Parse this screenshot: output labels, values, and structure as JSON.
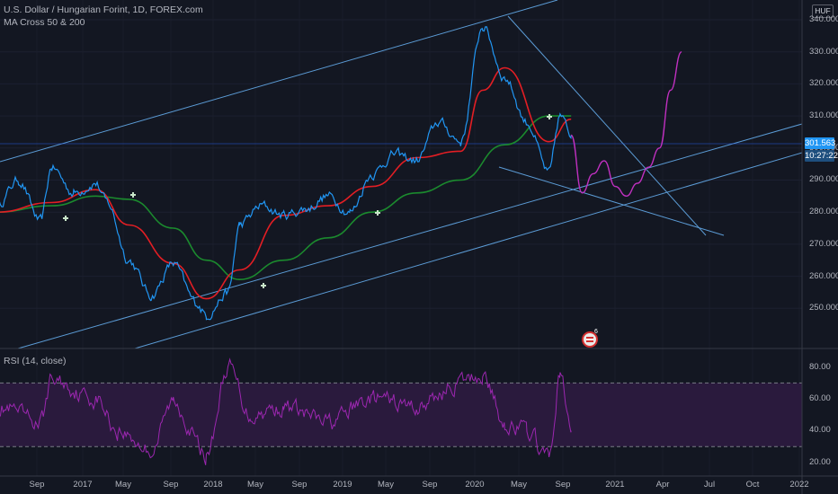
{
  "header": {
    "symbol_title": "U.S. Dollar / Hungarian Forint, 1D, FOREX.com",
    "indicator_1": "MA Cross 50 & 200",
    "rsi_label": "RSI (14, close)"
  },
  "price_axis": {
    "currency": "HUF",
    "ticks": [
      "340.000",
      "330.000",
      "320.000",
      "310.000",
      "300.000",
      "290.000",
      "280.000",
      "270.000",
      "260.000",
      "250.000"
    ],
    "last_price": "301.563",
    "countdown": "10:27:22"
  },
  "rsi_axis": {
    "ticks": [
      "80.00",
      "60.00",
      "40.00",
      "20.00"
    ]
  },
  "time_axis": {
    "labels": [
      "Sep",
      "2017",
      "May",
      "Sep",
      "2018",
      "May",
      "Sep",
      "2019",
      "May",
      "Sep",
      "2020",
      "May",
      "Sep",
      "2021",
      "Apr",
      "Jul",
      "Oct",
      "2022"
    ]
  },
  "events": {
    "badge_count": "6"
  },
  "colors": {
    "background": "#131722",
    "price": "#2196f3",
    "ma50": "#e31e24",
    "ma200": "#1b8a2e",
    "trendline": "#5b9bd5",
    "projection": "#c030c0",
    "rsi": "#9c27b0",
    "rsi_band": "#2a1a3d",
    "last_price_tag": "#2196f3"
  },
  "chart_data": {
    "type": "line",
    "title": "U.S. Dollar / Hungarian Forint, 1D, FOREX.com",
    "ylim": [
      241,
      342
    ],
    "series": [
      {
        "name": "U.S. Dollar / Hungarian Forint",
        "x": [
          "2016-07",
          "2016-09",
          "2016-11",
          "2016-12",
          "2017-02",
          "2017-04",
          "2017-05",
          "2017-07",
          "2017-09",
          "2017-11",
          "2018-01",
          "2018-02",
          "2018-04",
          "2018-05",
          "2018-07",
          "2018-09",
          "2018-11",
          "2019-01",
          "2019-03",
          "2019-05",
          "2019-07",
          "2019-09",
          "2019-11",
          "2020-01",
          "2020-03",
          "2020-05",
          "2020-07",
          "2020-09",
          "2020-10",
          "2020-11"
        ],
        "values": [
          282,
          290,
          277,
          294,
          286,
          289,
          283,
          265,
          254,
          264,
          252,
          248,
          255,
          276,
          282,
          279,
          281,
          285,
          280,
          292,
          298,
          296,
          308,
          302,
          338,
          322,
          308,
          292,
          310,
          304
        ]
      },
      {
        "name": "MA 50",
        "x": [
          "2016-07",
          "2016-12",
          "2017-04",
          "2017-07",
          "2017-11",
          "2018-02",
          "2018-05",
          "2018-09",
          "2019-01",
          "2019-05",
          "2019-09",
          "2020-01",
          "2020-03",
          "2020-05",
          "2020-09",
          "2020-11"
        ],
        "values": [
          280,
          283,
          287,
          276,
          264,
          253,
          262,
          279,
          282,
          288,
          297,
          299,
          318,
          325,
          302,
          309
        ]
      },
      {
        "name": "MA 200",
        "x": [
          "2016-07",
          "2016-12",
          "2017-04",
          "2017-07",
          "2017-11",
          "2018-02",
          "2018-05",
          "2018-09",
          "2019-01",
          "2019-05",
          "2019-09",
          "2020-01",
          "2020-05",
          "2020-09",
          "2020-11"
        ],
        "values": [
          280,
          282,
          285,
          284,
          275,
          265,
          259,
          265,
          272,
          280,
          286,
          290,
          301,
          310,
          310
        ]
      },
      {
        "name": "Projection",
        "x": [
          "2020-11",
          "2020-12",
          "2021-01",
          "2021-02",
          "2021-03",
          "2021-04",
          "2021-05",
          "2021-06",
          "2021-07",
          "2021-08",
          "2021-09"
        ],
        "values": [
          304,
          286,
          292,
          296,
          288,
          285,
          289,
          294,
          300,
          318,
          330
        ]
      }
    ],
    "rsi": {
      "name": "RSI (14, close)",
      "ylim": [
        16,
        86
      ],
      "bands": [
        30,
        70
      ],
      "x": [
        "2016-07",
        "2016-11",
        "2016-12",
        "2017-04",
        "2017-06",
        "2017-09",
        "2017-11",
        "2018-02",
        "2018-04",
        "2018-06",
        "2018-09",
        "2019-01",
        "2019-05",
        "2019-09",
        "2020-01",
        "2020-03",
        "2020-05",
        "2020-07",
        "2020-09",
        "2020-10",
        "2020-11"
      ],
      "values": [
        55,
        45,
        72,
        60,
        40,
        28,
        58,
        25,
        80,
        50,
        55,
        45,
        60,
        55,
        70,
        75,
        45,
        40,
        22,
        75,
        40
      ]
    }
  }
}
